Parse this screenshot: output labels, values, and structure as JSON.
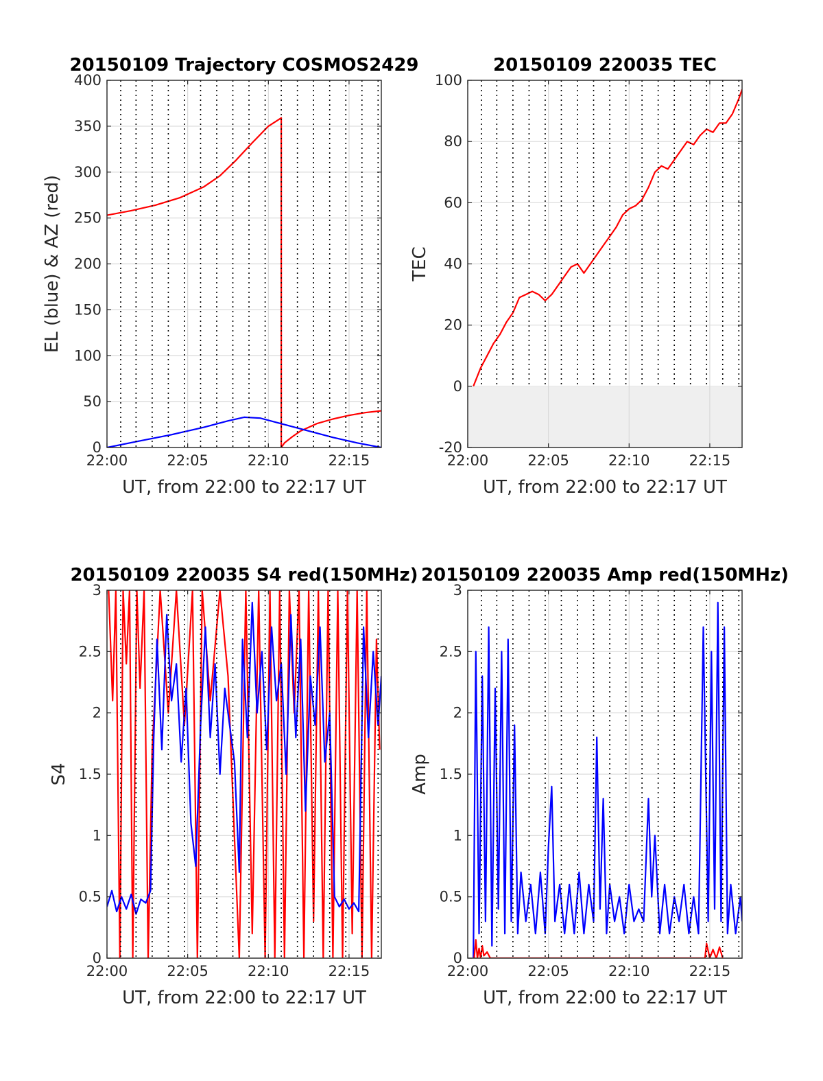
{
  "chart_data": [
    {
      "id": "trajectory",
      "type": "line",
      "title": "20150109 Trajectory COSMOS2429",
      "xlabel": "UT, from 22:00 to 22:17 UT",
      "ylabel": "EL (blue) & AZ (red)",
      "xlim": [
        0,
        17
      ],
      "ylim": [
        0,
        400
      ],
      "xticks": [
        0,
        5,
        10,
        15
      ],
      "xtick_labels": [
        "22:00",
        "22:05",
        "22:10",
        "22:15"
      ],
      "yticks": [
        0,
        50,
        100,
        150,
        200,
        250,
        300,
        350,
        400
      ],
      "ytick_labels": [
        "0",
        "50",
        "100",
        "150",
        "200",
        "250",
        "300",
        "350",
        "400"
      ],
      "grid": true,
      "series": [
        {
          "color": "#ff0000",
          "x": [
            0.0,
            1.5,
            3.0,
            4.5,
            6.0,
            7.0,
            8.0,
            9.0,
            10.0,
            10.8,
            10.8,
            11.0,
            11.5,
            12.0,
            13.0,
            14.0,
            15.0,
            16.0,
            17.0
          ],
          "y": [
            253,
            258,
            264,
            272,
            284,
            296,
            313,
            332,
            350,
            359,
            0,
            5,
            12,
            18,
            26,
            31,
            35,
            38,
            40
          ]
        },
        {
          "color": "#0000ff",
          "x": [
            0.0,
            2.0,
            4.0,
            6.0,
            7.5,
            8.5,
            9.5,
            11.0,
            12.5,
            14.0,
            15.5,
            17.0
          ],
          "y": [
            0,
            7,
            14,
            22,
            29,
            33,
            32,
            25,
            18,
            11,
            5,
            0
          ]
        }
      ]
    },
    {
      "id": "tec",
      "type": "line",
      "title": "20150109 220035 TEC",
      "xlabel": "UT, from 22:00 to 22:17 UT",
      "ylabel": "TEC",
      "xlim": [
        0,
        17
      ],
      "ylim": [
        -20,
        100
      ],
      "xticks": [
        0,
        5,
        10,
        15
      ],
      "xtick_labels": [
        "22:00",
        "22:05",
        "22:10",
        "22:15"
      ],
      "yticks": [
        -20,
        0,
        20,
        40,
        60,
        80,
        100
      ],
      "ytick_labels": [
        "-20",
        "0",
        "20",
        "40",
        "60",
        "80",
        "100"
      ],
      "grid": true,
      "series": [
        {
          "color": "#ff0000",
          "x": [
            0.35,
            0.8,
            1.2,
            1.6,
            2.0,
            2.4,
            2.8,
            3.2,
            3.6,
            4.0,
            4.4,
            4.8,
            5.2,
            5.6,
            6.0,
            6.4,
            6.8,
            7.2,
            7.6,
            8.0,
            8.4,
            8.8,
            9.2,
            9.6,
            10.0,
            10.4,
            10.8,
            11.2,
            11.6,
            12.0,
            12.4,
            12.8,
            13.2,
            13.6,
            14.0,
            14.4,
            14.8,
            15.2,
            15.6,
            16.0,
            16.4,
            16.8,
            17.0
          ],
          "y": [
            0,
            6,
            10,
            14,
            17,
            21,
            24,
            29,
            30,
            31,
            30,
            28,
            30,
            33,
            36,
            39,
            40,
            37,
            40,
            43,
            46,
            49,
            52,
            56,
            58,
            59,
            61,
            65,
            70,
            72,
            71,
            74,
            77,
            80,
            79,
            82,
            84,
            83,
            86,
            86,
            89,
            94,
            97
          ]
        }
      ]
    },
    {
      "id": "s4",
      "type": "line",
      "title": "20150109 220035 S4 red(150MHz)",
      "xlabel": "UT, from 22:00 to 22:17 UT",
      "ylabel": "S4",
      "xlim": [
        0,
        17
      ],
      "ylim": [
        0,
        3
      ],
      "xticks": [
        0,
        5,
        10,
        15
      ],
      "xtick_labels": [
        "22:00",
        "22:05",
        "22:10",
        "22:15"
      ],
      "yticks": [
        0,
        0.5,
        1,
        1.5,
        2,
        2.5,
        3
      ],
      "ytick_labels": [
        "0",
        "0.5",
        "1",
        "1.5",
        "2",
        "2.5",
        "3"
      ],
      "grid": true,
      "series": [
        {
          "color": "#ff0000",
          "x": [
            0.1,
            0.35,
            0.55,
            0.8,
            1.0,
            1.2,
            1.4,
            1.6,
            1.85,
            2.05,
            2.3,
            2.55,
            2.8,
            3.3,
            3.8,
            4.3,
            4.8,
            5.3,
            5.6,
            5.9,
            6.4,
            7.0,
            7.5,
            8.2,
            8.6,
            9.0,
            9.4,
            9.8,
            10.1,
            10.4,
            10.7,
            11.0,
            11.3,
            11.6,
            11.9,
            12.2,
            12.5,
            12.8,
            13.1,
            13.4,
            13.7,
            14.0,
            14.3,
            14.6,
            14.9,
            15.2,
            15.5,
            15.8,
            16.1,
            16.4,
            16.7,
            16.9
          ],
          "y": [
            3.0,
            2.1,
            3.0,
            0.0,
            3.0,
            2.4,
            3.0,
            0.0,
            3.0,
            2.2,
            3.0,
            0.0,
            1.7,
            3.0,
            2.0,
            3.0,
            1.9,
            3.0,
            0.0,
            3.0,
            2.1,
            3.0,
            2.3,
            0.0,
            3.0,
            0.2,
            3.0,
            0.0,
            3.0,
            0.0,
            3.0,
            0.0,
            3.0,
            2.0,
            3.0,
            0.0,
            3.0,
            0.3,
            3.0,
            0.0,
            3.0,
            0.0,
            3.0,
            0.0,
            3.0,
            0.2,
            3.0,
            0.0,
            3.0,
            0.0,
            2.6,
            1.7
          ]
        },
        {
          "color": "#0000ff",
          "x": [
            0.0,
            0.3,
            0.6,
            0.9,
            1.2,
            1.5,
            1.8,
            2.1,
            2.4,
            2.7,
            2.9,
            3.1,
            3.4,
            3.7,
            4.0,
            4.3,
            4.6,
            4.9,
            5.2,
            5.5,
            5.8,
            6.1,
            6.4,
            6.7,
            7.0,
            7.3,
            7.6,
            7.9,
            8.2,
            8.4,
            8.7,
            9.0,
            9.3,
            9.6,
            9.9,
            10.2,
            10.5,
            10.8,
            11.1,
            11.4,
            11.7,
            12.0,
            12.3,
            12.6,
            12.9,
            13.2,
            13.5,
            13.8,
            14.1,
            14.4,
            14.7,
            15.0,
            15.3,
            15.6,
            15.9,
            16.2,
            16.5,
            16.8,
            17.0
          ],
          "y": [
            0.42,
            0.55,
            0.38,
            0.5,
            0.4,
            0.52,
            0.36,
            0.48,
            0.45,
            0.55,
            1.8,
            2.6,
            1.7,
            2.8,
            2.1,
            2.4,
            1.6,
            2.2,
            1.1,
            0.75,
            1.9,
            2.7,
            1.8,
            2.4,
            1.5,
            2.2,
            1.9,
            1.6,
            0.7,
            2.6,
            1.8,
            2.9,
            2.0,
            2.5,
            1.7,
            2.7,
            2.1,
            2.4,
            1.5,
            2.8,
            1.8,
            2.6,
            1.2,
            2.3,
            1.9,
            2.7,
            1.6,
            2.0,
            0.5,
            0.42,
            0.48,
            0.4,
            0.45,
            0.38,
            2.7,
            1.8,
            2.5,
            1.9,
            2.3
          ]
        }
      ]
    },
    {
      "id": "amp",
      "type": "line",
      "title": "20150109 220035 Amp red(150MHz)",
      "xlabel": "UT, from 22:00 to 22:17 UT",
      "ylabel": "Amp",
      "xlim": [
        0,
        17
      ],
      "ylim": [
        0,
        3
      ],
      "xticks": [
        0,
        5,
        10,
        15
      ],
      "xtick_labels": [
        "22:00",
        "22:05",
        "22:10",
        "22:15"
      ],
      "yticks": [
        0,
        0.5,
        1,
        1.5,
        2,
        2.5,
        3
      ],
      "ytick_labels": [
        "0",
        "0.5",
        "1",
        "1.5",
        "2",
        "2.5",
        "3"
      ],
      "grid": true,
      "series": [
        {
          "color": "#0000ff",
          "x": [
            0.35,
            0.5,
            0.7,
            0.9,
            1.1,
            1.3,
            1.5,
            1.7,
            1.9,
            2.1,
            2.3,
            2.5,
            2.7,
            2.9,
            3.1,
            3.3,
            3.6,
            3.9,
            4.2,
            4.5,
            4.8,
            5.0,
            5.2,
            5.4,
            5.7,
            6.0,
            6.3,
            6.6,
            6.9,
            7.2,
            7.5,
            7.8,
            8.0,
            8.2,
            8.4,
            8.6,
            8.8,
            9.1,
            9.4,
            9.7,
            10.0,
            10.3,
            10.6,
            10.9,
            11.2,
            11.4,
            11.6,
            11.9,
            12.2,
            12.5,
            12.8,
            13.1,
            13.4,
            13.7,
            14.0,
            14.3,
            14.6,
            14.9,
            15.1,
            15.3,
            15.5,
            15.7,
            15.9,
            16.1,
            16.3,
            16.6,
            16.9,
            17.0
          ],
          "y": [
            0.0,
            2.5,
            0.2,
            2.3,
            0.3,
            2.7,
            0.1,
            2.2,
            0.4,
            2.5,
            0.2,
            2.6,
            0.3,
            1.9,
            0.2,
            0.7,
            0.3,
            0.6,
            0.2,
            0.7,
            0.2,
            0.9,
            1.4,
            0.3,
            0.6,
            0.2,
            0.6,
            0.2,
            0.7,
            0.2,
            0.6,
            0.3,
            1.8,
            0.4,
            1.3,
            0.2,
            0.6,
            0.3,
            0.5,
            0.2,
            0.6,
            0.3,
            0.4,
            0.3,
            1.3,
            0.5,
            1.0,
            0.2,
            0.6,
            0.2,
            0.5,
            0.3,
            0.6,
            0.2,
            0.5,
            0.2,
            2.7,
            0.3,
            2.5,
            0.4,
            2.9,
            0.3,
            2.7,
            0.2,
            0.6,
            0.2,
            0.5,
            0.3
          ]
        },
        {
          "color": "#ff0000",
          "x": [
            0.4,
            0.5,
            0.6,
            0.7,
            0.8,
            0.9,
            1.0,
            1.2,
            1.4,
            14.7,
            14.8,
            15.0,
            15.2,
            15.4,
            15.6,
            15.8
          ],
          "y": [
            0.0,
            0.15,
            0.0,
            0.08,
            0.0,
            0.1,
            0.02,
            0.05,
            0.0,
            0.0,
            0.12,
            0.0,
            0.07,
            0.0,
            0.09,
            0.0
          ]
        }
      ]
    }
  ]
}
